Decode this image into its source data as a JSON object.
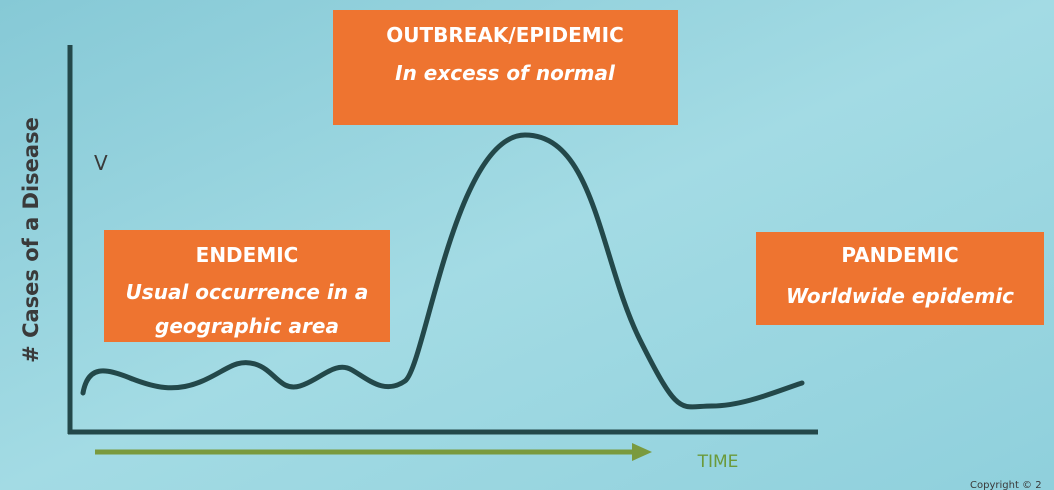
{
  "outbreak": {
    "title": "OUTBREAK/EPIDEMIC",
    "subtitle": "In excess of normal"
  },
  "endemic": {
    "title": "ENDEMIC",
    "lines": [
      "Usual occurrence in a",
      "geographic area"
    ]
  },
  "pandemic": {
    "title": "PANDEMIC",
    "subtitle": "Worldwide epidemic"
  },
  "y_axis_label": "# Cases of a Disease",
  "marker": "V",
  "x_axis_label": "TIME",
  "copyright": "Copyright © 2"
}
